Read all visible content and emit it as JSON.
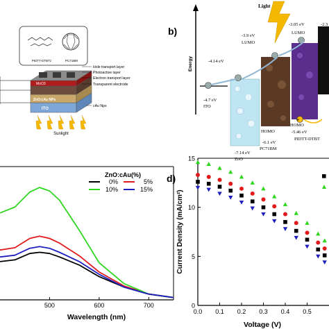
{
  "panel_a": {
    "molecule_labels": [
      "PIDTT-DTBTz",
      "PC71BM"
    ],
    "layer_labels": [
      "Hole transport layer",
      "Photoactive layer",
      "Electron transport layer",
      "Transparent electrode"
    ],
    "stack_labels": [
      "MoO3",
      "ZnO:cAu NPs",
      "ITO"
    ],
    "np_label": "cAu Nps",
    "sunlight_label": "Sunlight",
    "colors": {
      "light_arrow": "#f5b800",
      "ito": "#7ea7d8",
      "active": "#6d4c3d"
    }
  },
  "panel_b": {
    "letter": "b)",
    "light_label": "Light",
    "energy_axis_label": "Energy",
    "levels": [
      {
        "material": "ITO",
        "value": "-4.7 eV"
      },
      {
        "material": "ZnO",
        "top": "-4.14 eV",
        "bottom": "-7.14 eV"
      },
      {
        "material": "PC71BM",
        "lumo_value": "-3.9 eV",
        "lumo_label": "LUMO",
        "homo_value": "-6.1 eV",
        "homo_label": "HOMO"
      },
      {
        "material": "PIDTT-DTBT",
        "lumo_value": "-3.05 eV",
        "lumo_label": "LUMO",
        "homo_value": "-5.46 eV",
        "homo_label": "HOMO"
      },
      {
        "material": "",
        "top": "-2.3"
      }
    ],
    "colors": {
      "zno": "#bfe4f2",
      "pcbm": "#5a3a25",
      "pidtt": "#5b2d8c"
    }
  },
  "chart_data": [
    {
      "type": "line",
      "panel": "c",
      "xlabel": "Wavelength (nm)",
      "ylabel": "",
      "xlim": [
        400,
        750
      ],
      "xticks": [
        500,
        600,
        700
      ],
      "legend_title": "ZnO:cAu(%)",
      "legend_position": "top-right",
      "series": [
        {
          "name": "0%",
          "color": "#000000",
          "x": [
            400,
            430,
            460,
            480,
            500,
            520,
            560,
            600,
            650,
            700,
            750
          ],
          "y": [
            0.33,
            0.345,
            0.4,
            0.41,
            0.4,
            0.37,
            0.3,
            0.2,
            0.11,
            0.05,
            0.02
          ]
        },
        {
          "name": "5%",
          "color": "#e31a1c",
          "x": [
            400,
            430,
            460,
            480,
            500,
            520,
            560,
            600,
            650,
            700,
            750
          ],
          "y": [
            0.43,
            0.45,
            0.53,
            0.55,
            0.53,
            0.49,
            0.38,
            0.24,
            0.12,
            0.05,
            0.02
          ]
        },
        {
          "name": "10%",
          "color": "#2ed61e",
          "x": [
            400,
            430,
            460,
            480,
            500,
            520,
            560,
            600,
            650,
            700,
            750
          ],
          "y": [
            0.75,
            0.8,
            0.93,
            0.97,
            0.94,
            0.86,
            0.6,
            0.32,
            0.14,
            0.05,
            0.02
          ]
        },
        {
          "name": "15%",
          "color": "#1f1fbf",
          "x": [
            400,
            430,
            460,
            480,
            500,
            520,
            560,
            600,
            650,
            700,
            750
          ],
          "y": [
            0.37,
            0.385,
            0.445,
            0.46,
            0.445,
            0.41,
            0.33,
            0.22,
            0.11,
            0.05,
            0.02
          ]
        }
      ]
    },
    {
      "type": "scatter",
      "panel": "d",
      "letter": "d)",
      "xlabel": "Voltage (V)",
      "ylabel": "Current Density (mA/cm²)",
      "xlim": [
        0,
        0.6
      ],
      "ylim": [
        0,
        15
      ],
      "xticks": [
        0.0,
        0.1,
        0.2,
        0.3,
        0.4,
        0.5
      ],
      "yticks": [
        0,
        5,
        10,
        15
      ],
      "series": [
        {
          "marker": "triangle-up",
          "color": "#2ed61e",
          "x": [
            0.0,
            0.05,
            0.1,
            0.15,
            0.2,
            0.25,
            0.3,
            0.35,
            0.4,
            0.45,
            0.5,
            0.55,
            0.58
          ],
          "y": [
            14.6,
            14.4,
            14.0,
            13.6,
            13.1,
            12.5,
            11.9,
            11.1,
            10.3,
            9.4,
            8.4,
            7.3,
            6.6
          ]
        },
        {
          "marker": "circle",
          "color": "#e31a1c",
          "x": [
            0.0,
            0.05,
            0.1,
            0.15,
            0.2,
            0.25,
            0.3,
            0.35,
            0.4,
            0.45,
            0.5,
            0.55,
            0.58
          ],
          "y": [
            13.3,
            13.1,
            12.8,
            12.4,
            11.9,
            11.4,
            10.8,
            10.1,
            9.3,
            8.4,
            7.4,
            6.4,
            5.8
          ]
        },
        {
          "marker": "square",
          "color": "#000000",
          "x": [
            0.0,
            0.05,
            0.1,
            0.15,
            0.2,
            0.25,
            0.3,
            0.35,
            0.4,
            0.45,
            0.5,
            0.55,
            0.58
          ],
          "y": [
            12.6,
            12.4,
            12.1,
            11.7,
            11.2,
            10.6,
            10.0,
            9.3,
            8.5,
            7.6,
            6.7,
            5.7,
            5.1
          ]
        },
        {
          "marker": "triangle-down",
          "color": "#1f1fbf",
          "x": [
            0.0,
            0.05,
            0.1,
            0.15,
            0.2,
            0.25,
            0.3,
            0.35,
            0.4,
            0.45,
            0.5,
            0.55,
            0.58
          ],
          "y": [
            12.0,
            11.8,
            11.4,
            11.0,
            10.5,
            9.9,
            9.3,
            8.6,
            7.8,
            6.9,
            6.0,
            5.0,
            4.4
          ]
        }
      ]
    }
  ]
}
